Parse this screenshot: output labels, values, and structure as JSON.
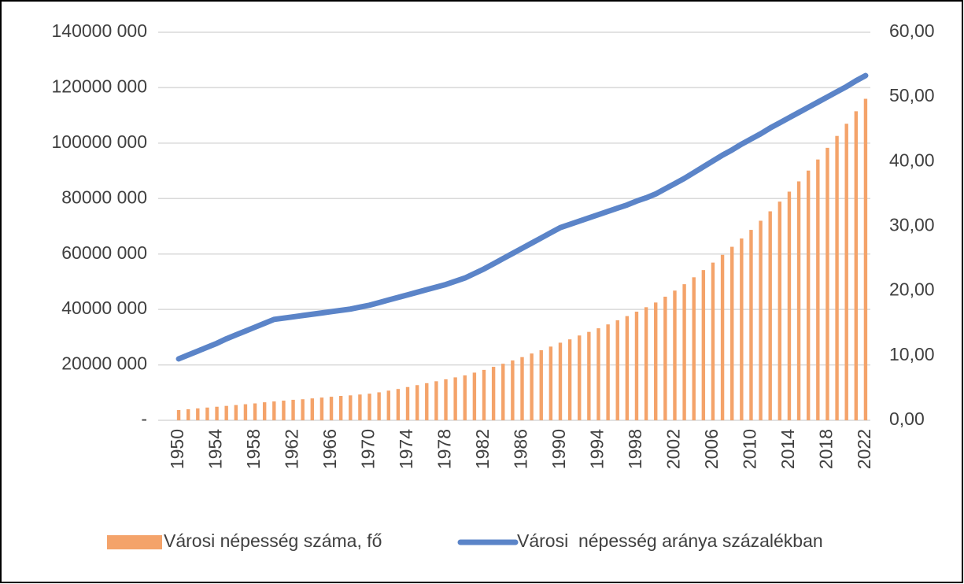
{
  "chart_data": {
    "type": "bar-line",
    "x": [
      1950,
      1951,
      1952,
      1953,
      1954,
      1955,
      1956,
      1957,
      1958,
      1959,
      1960,
      1961,
      1962,
      1963,
      1964,
      1965,
      1966,
      1967,
      1968,
      1969,
      1970,
      1971,
      1972,
      1973,
      1974,
      1975,
      1976,
      1977,
      1978,
      1979,
      1980,
      1981,
      1982,
      1983,
      1984,
      1985,
      1986,
      1987,
      1988,
      1989,
      1990,
      1991,
      1992,
      1993,
      1994,
      1995,
      1996,
      1997,
      1998,
      1999,
      2000,
      2001,
      2002,
      2003,
      2004,
      2005,
      2006,
      2007,
      2008,
      2009,
      2010,
      2011,
      2012,
      2013,
      2014,
      2015,
      2016,
      2017,
      2018,
      2019,
      2020,
      2021,
      2022
    ],
    "xlim": [
      1949.5,
      2022.5
    ],
    "xticks": [
      1950,
      1954,
      1958,
      1962,
      1966,
      1970,
      1974,
      1978,
      1982,
      1986,
      1990,
      1994,
      1998,
      2002,
      2006,
      2010,
      2014,
      2018,
      2022
    ],
    "ylim": [
      0,
      140000000
    ],
    "yticks": [
      {
        "value": 0,
        "label": "-"
      },
      {
        "value": 20000000,
        "label": "20000 000"
      },
      {
        "value": 40000000,
        "label": "40000 000"
      },
      {
        "value": 60000000,
        "label": "60000 000"
      },
      {
        "value": 80000000,
        "label": "80000 000"
      },
      {
        "value": 100000000,
        "label": "100000 000"
      },
      {
        "value": 120000000,
        "label": "120000 000"
      },
      {
        "value": 140000000,
        "label": "140000 000"
      }
    ],
    "y2lim": [
      0,
      60
    ],
    "y2ticks": [
      {
        "value": 0,
        "label": "0,00"
      },
      {
        "value": 10,
        "label": "10,00"
      },
      {
        "value": 20,
        "label": "20,00"
      },
      {
        "value": 30,
        "label": "30,00"
      },
      {
        "value": 40,
        "label": "40,00"
      },
      {
        "value": 50,
        "label": "50,00"
      },
      {
        "value": 60,
        "label": "60,00"
      }
    ],
    "grid": true,
    "legend": "bottom",
    "series": [
      {
        "name": "Városi népesség száma, fő",
        "kind": "bar",
        "color": "#f4a36a",
        "values": [
          3700000,
          4000000,
          4300000,
          4600000,
          4900000,
          5200000,
          5500000,
          5800000,
          6100000,
          6500000,
          6800000,
          7100000,
          7400000,
          7600000,
          7900000,
          8200000,
          8500000,
          8800000,
          9000000,
          9300000,
          9600000,
          10100000,
          10700000,
          11300000,
          12000000,
          12700000,
          13400000,
          14100000,
          14800000,
          15500000,
          16200000,
          17200000,
          18200000,
          19300000,
          20400000,
          21600000,
          22800000,
          24100000,
          25300000,
          26600000,
          28000000,
          29200000,
          30600000,
          31900000,
          33200000,
          34600000,
          36100000,
          37600000,
          39200000,
          40800000,
          42500000,
          44600000,
          46800000,
          49100000,
          51600000,
          54200000,
          56900000,
          59700000,
          62600000,
          65600000,
          68700000,
          72000000,
          75400000,
          78900000,
          82500000,
          86200000,
          90100000,
          94100000,
          98300000,
          102600000,
          107000000,
          111500000,
          116000000
        ]
      },
      {
        "name": "Városi  népesség aránya százalékban",
        "kind": "line",
        "axis": "y2",
        "color": "#5b84c8",
        "values": [
          9.5,
          10.1,
          10.7,
          11.3,
          11.9,
          12.6,
          13.2,
          13.8,
          14.4,
          15.0,
          15.6,
          15.8,
          16.0,
          16.2,
          16.4,
          16.6,
          16.8,
          17.0,
          17.2,
          17.5,
          17.8,
          18.2,
          18.6,
          19.0,
          19.4,
          19.8,
          20.2,
          20.6,
          21.0,
          21.5,
          22.0,
          22.7,
          23.4,
          24.2,
          25.0,
          25.8,
          26.6,
          27.4,
          28.2,
          29.0,
          29.8,
          30.3,
          30.8,
          31.3,
          31.8,
          32.3,
          32.8,
          33.3,
          33.9,
          34.4,
          35.0,
          35.8,
          36.6,
          37.4,
          38.3,
          39.2,
          40.1,
          41.0,
          41.8,
          42.7,
          43.5,
          44.3,
          45.2,
          46.0,
          46.8,
          47.6,
          48.4,
          49.2,
          50.0,
          50.8,
          51.6,
          52.5,
          53.3
        ]
      }
    ]
  }
}
